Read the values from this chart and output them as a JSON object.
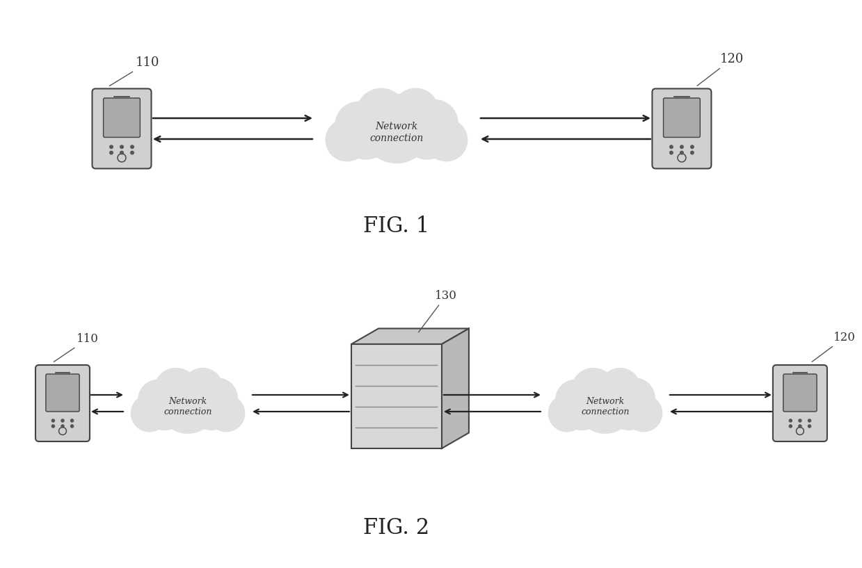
{
  "background_color": "#ffffff",
  "fig_width": 12.39,
  "fig_height": 8.17,
  "fig1_label": "FIG. 1",
  "fig2_label": "FIG. 2",
  "label_110_fig1": "110",
  "label_120_fig1": "120",
  "label_110_fig2": "110",
  "label_120_fig2": "120",
  "label_130_fig2": "130",
  "network_text": "Network\nconnection",
  "line_color": "#555555",
  "text_color": "#333333",
  "device_color": "#cccccc",
  "cloud_color": "#dddddd"
}
